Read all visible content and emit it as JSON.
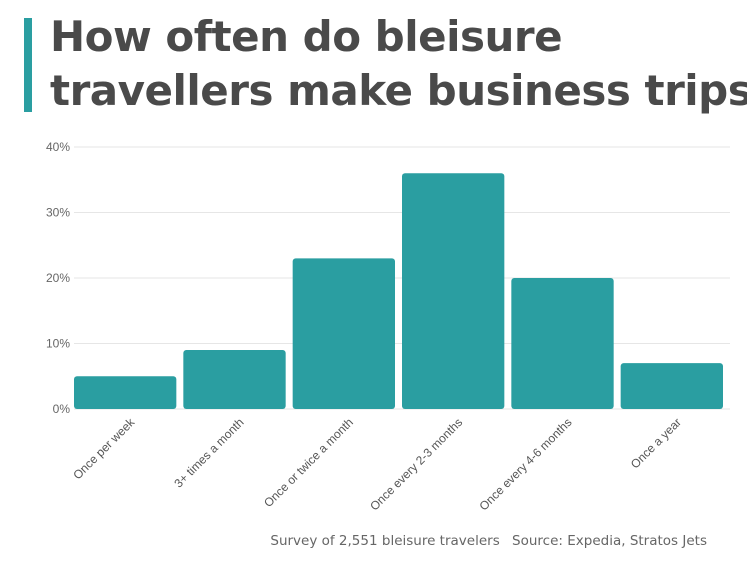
{
  "title": {
    "line1": "How often do bleisure",
    "line2": "travellers make business trips?"
  },
  "footer": {
    "survey": "Survey of 2,551 bleisure travelers",
    "source": "Source: Expedia, Stratos Jets"
  },
  "colors": {
    "bar": "#2a9ea1",
    "title_accent": "#2a9ea1",
    "gridline": "#e6e6e6",
    "title_text": "#4a4a4a"
  },
  "chart_data": {
    "type": "bar",
    "categories": [
      "Once per week",
      "3+ times a month",
      "Once or twice a month",
      "Once every 2-3 months",
      "Once every 4-6 months",
      "Once a year"
    ],
    "values": [
      5,
      9,
      23,
      36,
      20,
      7
    ],
    "unit": "%",
    "ylim": [
      0,
      40
    ],
    "yticks": [
      "0%",
      "10%",
      "20%",
      "30%",
      "40%"
    ],
    "grid": true,
    "legend": "none"
  }
}
